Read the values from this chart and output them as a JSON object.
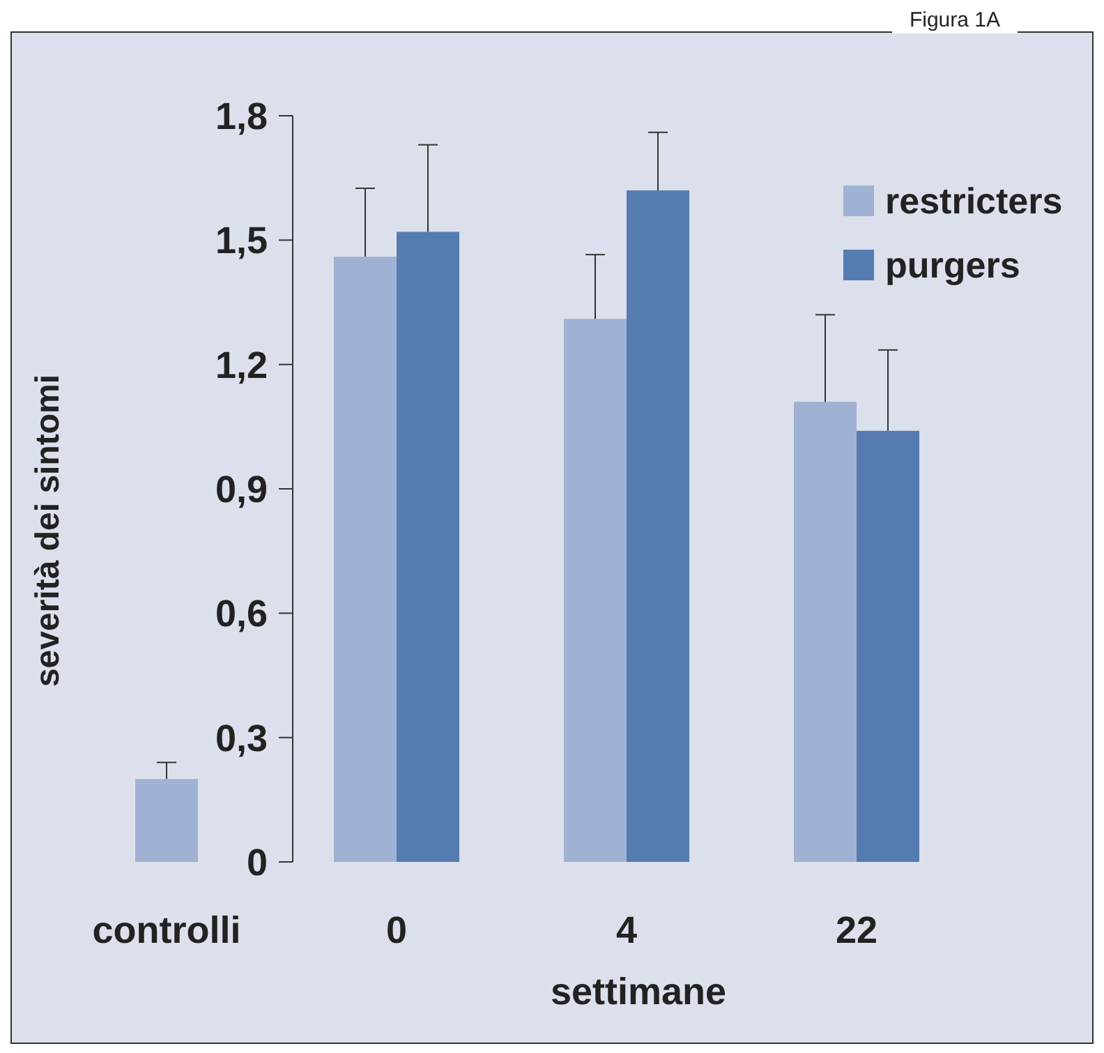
{
  "chart_data": {
    "type": "bar",
    "title": "Figura 1A",
    "xlabel": "settimane",
    "ylabel": "severità dei sintomi",
    "categories": [
      "controlli",
      "0",
      "4",
      "22"
    ],
    "series": [
      {
        "name": "restricters",
        "color": "#a0b2d3",
        "values": [
          0.2,
          1.46,
          1.31,
          1.11
        ],
        "errors": [
          [
            0.2,
            0.24
          ],
          [
            1.46,
            1.625
          ],
          [
            1.31,
            1.465
          ],
          [
            1.11,
            1.32
          ]
        ]
      },
      {
        "name": "purgers",
        "color": "#557cb1",
        "values": [
          null,
          1.52,
          1.62,
          1.04
        ],
        "errors": [
          null,
          [
            1.52,
            1.73
          ],
          [
            1.62,
            1.76
          ],
          [
            1.04,
            1.235
          ]
        ]
      }
    ],
    "ylim": [
      0,
      1.8
    ],
    "yticks": [
      {
        "value": 0,
        "label": "0"
      },
      {
        "value": 0.3,
        "label": "0,3"
      },
      {
        "value": 0.6,
        "label": "0,6"
      },
      {
        "value": 0.9,
        "label": "0,9"
      },
      {
        "value": 1.2,
        "label": "1,2"
      },
      {
        "value": 1.5,
        "label": "1,5"
      },
      {
        "value": 1.8,
        "label": "1,8"
      }
    ],
    "legend": "top right",
    "grid": false
  }
}
